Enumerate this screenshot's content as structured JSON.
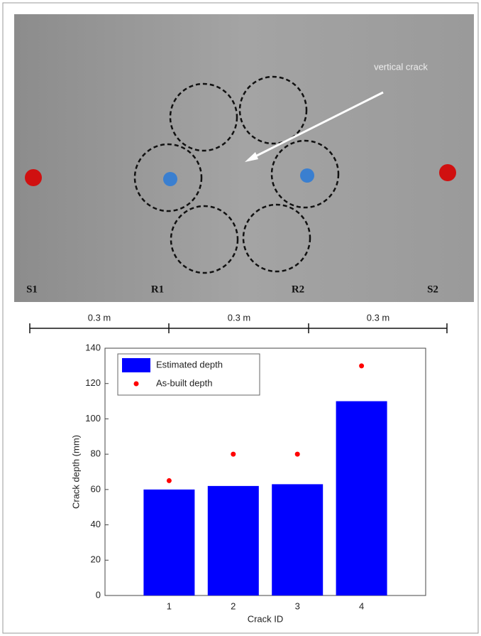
{
  "photo": {
    "labels": [
      "S1",
      "R1",
      "R2",
      "S2"
    ],
    "annotation": "vertical crack",
    "spacings": [
      "0.3 m",
      "0.3 m",
      "0.3 m"
    ]
  },
  "chart_data": {
    "type": "bar",
    "xlabel": "Crack ID",
    "ylabel": "Crack depth (mm)",
    "x": [
      1,
      2,
      3,
      4
    ],
    "xlim": [
      0,
      5
    ],
    "xticks": [
      1,
      2,
      3,
      4
    ],
    "ylim": [
      0,
      140
    ],
    "yticks": [
      0,
      20,
      40,
      60,
      80,
      100,
      120,
      140
    ],
    "series": [
      {
        "name": "Estimated depth",
        "type": "bar",
        "color": "#0000ff",
        "values": [
          60,
          62,
          63,
          110
        ]
      },
      {
        "name": "As-built depth",
        "type": "scatter",
        "color": "#ff0000",
        "values": [
          65,
          80,
          80,
          130
        ]
      }
    ],
    "legend": "upper-left"
  }
}
